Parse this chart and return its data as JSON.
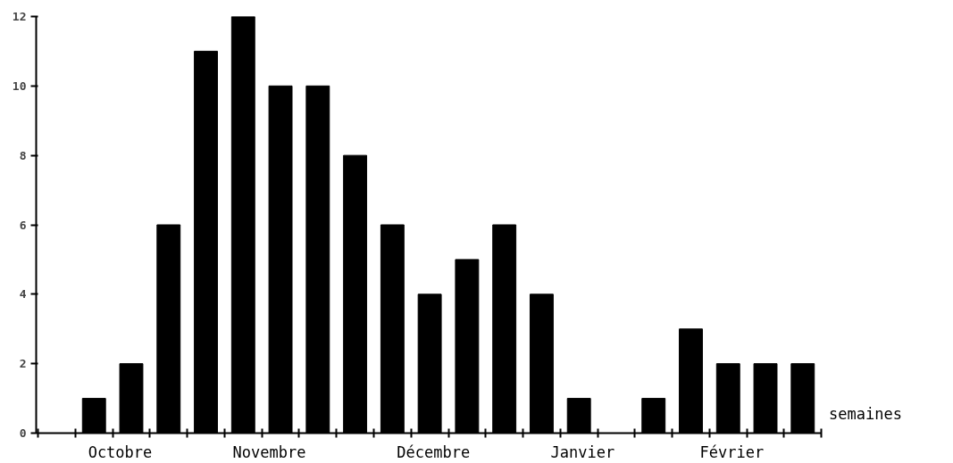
{
  "chart_data": {
    "type": "bar",
    "xlabel": "semaines",
    "categories": [
      null,
      null,
      null,
      null,
      null,
      null,
      null,
      null,
      null,
      null,
      null,
      null,
      null,
      null,
      null,
      null,
      null,
      null,
      null,
      null,
      null
    ],
    "values": [
      null,
      1,
      2,
      6,
      11,
      12,
      10,
      10,
      8,
      6,
      4,
      5,
      6,
      4,
      1,
      null,
      1,
      3,
      2,
      2,
      2
    ],
    "color": "#000000",
    "ylim": [
      0,
      12
    ],
    "yticks": [
      0,
      2,
      4,
      6,
      8,
      10,
      12
    ],
    "annotations": [
      "Octobre",
      "Novembre",
      "Décembre",
      "Janvier",
      "Février"
    ]
  }
}
